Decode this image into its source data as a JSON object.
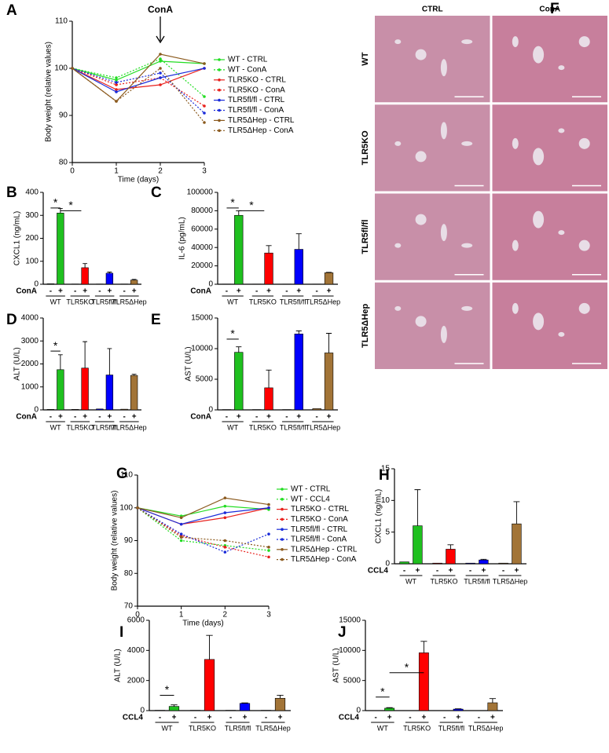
{
  "chart_data": [
    {
      "panel": "A",
      "type": "line",
      "annotation": "ConA",
      "y_label": "Body weight (relative values)",
      "x_label": "Time (days)",
      "x": [
        0,
        1,
        2,
        3
      ],
      "xlim": [
        0,
        3
      ],
      "xticks": [
        0,
        1,
        2,
        3
      ],
      "ylim": [
        80,
        110
      ],
      "yticks": [
        80,
        90,
        100,
        110
      ],
      "series": [
        {
          "name": "WT -  CTRL",
          "color": "#22dd22",
          "linestyle": "solid",
          "values": [
            100,
            97.5,
            101.5,
            101
          ]
        },
        {
          "name": "WT - ConA",
          "color": "#22dd22",
          "linestyle": "dotted",
          "values": [
            100,
            98,
            102,
            94
          ]
        },
        {
          "name": "TLR5KO -  CTRL",
          "color": "#e8201c",
          "linestyle": "solid",
          "values": [
            100,
            95.5,
            96.5,
            100
          ]
        },
        {
          "name": "TLR5KO - ConA",
          "color": "#e8201c",
          "linestyle": "dotted",
          "values": [
            100,
            96.5,
            98,
            92
          ]
        },
        {
          "name": "TLR5fl/fl -  CTRL",
          "color": "#1a2bd9",
          "linestyle": "solid",
          "values": [
            100,
            95,
            98,
            100
          ]
        },
        {
          "name": "TLR5fl/fl - ConA",
          "color": "#1a2bd9",
          "linestyle": "dotted",
          "values": [
            100,
            97,
            99,
            90.5
          ]
        },
        {
          "name": "TLR5ΔHep - CTRL",
          "color": "#8b5a1e",
          "linestyle": "solid",
          "values": [
            100,
            93,
            103,
            101
          ]
        },
        {
          "name": "TLR5ΔHep - ConA",
          "color": "#8b5a1e",
          "linestyle": "dotted",
          "values": [
            100,
            93,
            100,
            88.5
          ]
        }
      ]
    },
    {
      "panel": "B",
      "type": "bar",
      "y_label": "CXCL1 (ng/mL)",
      "treatment": "ConA",
      "annotations": [
        "*",
        "*"
      ],
      "categories": [
        "WT",
        "TLR5KO",
        "TLR5fl/fl",
        "TLR5ΔHep"
      ],
      "colors": [
        "#1fc01f",
        "#ff0000",
        "#0000ff",
        "#a27437"
      ],
      "ylim": [
        0,
        400
      ],
      "yticks": [
        0,
        100,
        200,
        300,
        400
      ],
      "series": [
        {
          "name": "-",
          "values": [
            2,
            1,
            1,
            1
          ]
        },
        {
          "name": "+",
          "values": [
            310,
            72,
            48,
            18
          ],
          "errors": [
            20,
            18,
            5,
            3
          ]
        }
      ]
    },
    {
      "panel": "C",
      "type": "bar",
      "y_label": "IL-6 (pg/mL)",
      "treatment": "ConA",
      "annotations": [
        "*",
        "*"
      ],
      "categories": [
        "WT",
        "TLR5KO",
        "TLR5fl/fl",
        "TLR5ΔHep"
      ],
      "colors": [
        "#1fc01f",
        "#ff0000",
        "#0000ff",
        "#a27437"
      ],
      "ylim": [
        0,
        100000
      ],
      "yticks": [
        0,
        20000,
        40000,
        60000,
        80000,
        100000
      ],
      "series": [
        {
          "name": "-",
          "values": [
            200,
            200,
            200,
            200
          ]
        },
        {
          "name": "+",
          "values": [
            75000,
            34000,
            38000,
            12500
          ],
          "errors": [
            5000,
            8000,
            17000,
            500
          ]
        }
      ]
    },
    {
      "panel": "D",
      "type": "bar",
      "y_label": "ALT (U/L)",
      "treatment": "ConA",
      "annotations": [
        "*"
      ],
      "categories": [
        "WT",
        "TLR5KO",
        "TLR5fl/fl",
        "TLR5ΔHep"
      ],
      "colors": [
        "#1fc01f",
        "#ff0000",
        "#0000ff",
        "#a27437"
      ],
      "ylim": [
        0,
        4000
      ],
      "yticks": [
        0,
        1000,
        2000,
        3000,
        4000
      ],
      "series": [
        {
          "name": "-",
          "values": [
            20,
            20,
            40,
            30
          ]
        },
        {
          "name": "+",
          "values": [
            1750,
            1820,
            1520,
            1500
          ],
          "errors": [
            650,
            1150,
            1150,
            50
          ]
        }
      ]
    },
    {
      "panel": "E",
      "type": "bar",
      "y_label": "AST (U/L)",
      "treatment": "ConA",
      "annotations": [
        "*"
      ],
      "categories": [
        "WT",
        "TLR5KO",
        "TLR5fl/fl",
        "TLR5ΔHep"
      ],
      "colors": [
        "#1fc01f",
        "#ff0000",
        "#0000ff",
        "#a27437"
      ],
      "ylim": [
        0,
        15000
      ],
      "yticks": [
        0,
        5000,
        10000,
        15000
      ],
      "series": [
        {
          "name": "-",
          "values": [
            50,
            50,
            50,
            200
          ]
        },
        {
          "name": "+",
          "values": [
            9400,
            3600,
            12400,
            9300
          ],
          "errors": [
            900,
            2900,
            500,
            3200
          ]
        }
      ]
    },
    {
      "panel": "F",
      "type": "image-grid",
      "columns": [
        "CTRL",
        "ConA"
      ],
      "rows": [
        "WT",
        "TLR5KO",
        "TLR5fl/fl",
        "TLR5ΔHep"
      ]
    },
    {
      "panel": "G",
      "type": "line",
      "y_label": "Body weight (relative values)",
      "x_label": "Time (days)",
      "x": [
        0,
        1,
        2,
        3
      ],
      "xlim": [
        0,
        3
      ],
      "xticks": [
        0,
        1,
        2,
        3
      ],
      "ylim": [
        70,
        110
      ],
      "yticks": [
        70,
        80,
        90,
        100,
        110
      ],
      "series": [
        {
          "name": "WT -  CTRL",
          "color": "#22dd22",
          "linestyle": "solid",
          "values": [
            100,
            97.5,
            100.5,
            99.5
          ]
        },
        {
          "name": "WT - CCL4",
          "color": "#22dd22",
          "linestyle": "dotted",
          "values": [
            100,
            90,
            88.5,
            87
          ]
        },
        {
          "name": "TLR5KO -  CTRL",
          "color": "#e8201c",
          "linestyle": "solid",
          "values": [
            100,
            95,
            97,
            100
          ]
        },
        {
          "name": "TLR5KO - ConA",
          "color": "#e8201c",
          "linestyle": "dotted",
          "values": [
            100,
            91.5,
            88,
            85
          ]
        },
        {
          "name": "TLR5fl/fl -  CTRL",
          "color": "#1a2bd9",
          "linestyle": "solid",
          "values": [
            100,
            95,
            98.5,
            100
          ]
        },
        {
          "name": "TLR5fl/fl - ConA",
          "color": "#1a2bd9",
          "linestyle": "dotted",
          "values": [
            100,
            92,
            86.5,
            92
          ]
        },
        {
          "name": "TLR5ΔHep - CTRL",
          "color": "#8b5a1e",
          "linestyle": "solid",
          "values": [
            100,
            97,
            103,
            101
          ]
        },
        {
          "name": "TLR5ΔHep - ConA",
          "color": "#8b5a1e",
          "linestyle": "dotted",
          "values": [
            100,
            91,
            90,
            88
          ]
        }
      ]
    },
    {
      "panel": "H",
      "type": "bar",
      "y_label": "CXCL1 (ng/mL)",
      "treatment": "CCL4",
      "annotations": [],
      "categories": [
        "WT",
        "TLR5KO",
        "TLR5fl/fl",
        "TLR5ΔHep"
      ],
      "colors": [
        "#1fc01f",
        "#ff0000",
        "#0000ff",
        "#a27437"
      ],
      "ylim": [
        0,
        15
      ],
      "yticks": [
        0,
        5,
        10,
        15
      ],
      "series": [
        {
          "name": "-",
          "values": [
            0.3,
            0.1,
            0.1,
            0.1
          ]
        },
        {
          "name": "+",
          "values": [
            6,
            2.3,
            0.6,
            6.3
          ],
          "errors": [
            5.7,
            0.7,
            0.1,
            3.5
          ]
        }
      ]
    },
    {
      "panel": "I",
      "type": "bar",
      "y_label": "ALT (U/L)",
      "treatment": "CCL4",
      "annotations": [
        "*"
      ],
      "categories": [
        "WT",
        "TLR5KO",
        "TLR5fl/fl",
        "TLR5ΔHep"
      ],
      "colors": [
        "#1fc01f",
        "#ff0000",
        "#0000ff",
        "#a27437"
      ],
      "ylim": [
        0,
        6000
      ],
      "yticks": [
        0,
        2000,
        4000,
        6000
      ],
      "series": [
        {
          "name": "-",
          "values": [
            20,
            20,
            20,
            20
          ]
        },
        {
          "name": "+",
          "values": [
            280,
            3400,
            480,
            820
          ],
          "errors": [
            100,
            1600,
            30,
            200
          ]
        }
      ]
    },
    {
      "panel": "J",
      "type": "bar",
      "y_label": "AST (U/L)",
      "treatment": "CCL4",
      "annotations": [
        "*",
        "*"
      ],
      "categories": [
        "WT",
        "TLR5KO",
        "TLR5fl/fl",
        "TLR5ΔHep"
      ],
      "colors": [
        "#1fc01f",
        "#ff0000",
        "#0000ff",
        "#a27437"
      ],
      "ylim": [
        0,
        15000
      ],
      "yticks": [
        0,
        5000,
        10000,
        15000
      ],
      "series": [
        {
          "name": "-",
          "values": [
            20,
            20,
            20,
            20
          ]
        },
        {
          "name": "+",
          "values": [
            400,
            9600,
            250,
            1300
          ],
          "errors": [
            100,
            1900,
            50,
            700
          ]
        }
      ]
    }
  ]
}
